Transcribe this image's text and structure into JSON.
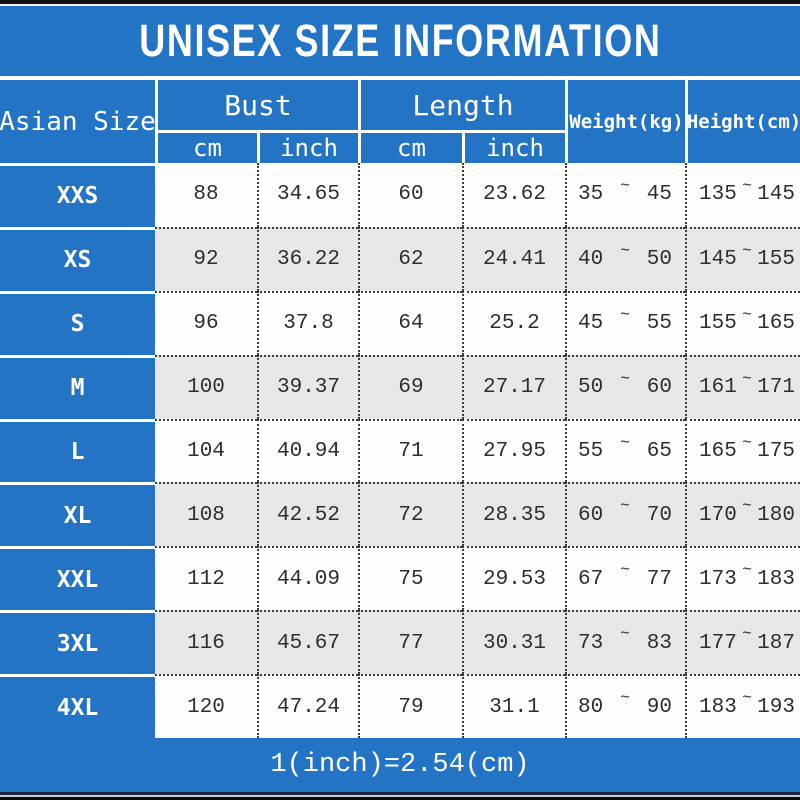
{
  "title": "UNISEX SIZE INFORMATION",
  "footer_note": "1(inch)=2.54(cm)",
  "tilde": "~",
  "header": {
    "size_column": "Asian Size",
    "bust_group": "Bust",
    "length_group": "Length",
    "weight_column": "Weight(kg)",
    "height_column": "Height(cm)",
    "bust_cm_unit": "cm",
    "bust_inch_unit": "inch",
    "length_cm_unit": "cm",
    "length_inch_unit": "inch"
  },
  "rows": [
    {
      "size": "XXS",
      "bust_cm": "88",
      "bust_inch": "34.65",
      "length_cm": "60",
      "length_inch": "23.62",
      "weight_min": "35",
      "weight_max": "45",
      "height_min": "135",
      "height_max": "145"
    },
    {
      "size": "XS",
      "bust_cm": "92",
      "bust_inch": "36.22",
      "length_cm": "62",
      "length_inch": "24.41",
      "weight_min": "40",
      "weight_max": "50",
      "height_min": "145",
      "height_max": "155"
    },
    {
      "size": "S",
      "bust_cm": "96",
      "bust_inch": "37.8",
      "length_cm": "64",
      "length_inch": "25.2",
      "weight_min": "45",
      "weight_max": "55",
      "height_min": "155",
      "height_max": "165"
    },
    {
      "size": "M",
      "bust_cm": "100",
      "bust_inch": "39.37",
      "length_cm": "69",
      "length_inch": "27.17",
      "weight_min": "50",
      "weight_max": "60",
      "height_min": "161",
      "height_max": "171"
    },
    {
      "size": "L",
      "bust_cm": "104",
      "bust_inch": "40.94",
      "length_cm": "71",
      "length_inch": "27.95",
      "weight_min": "55",
      "weight_max": "65",
      "height_min": "165",
      "height_max": "175"
    },
    {
      "size": "XL",
      "bust_cm": "108",
      "bust_inch": "42.52",
      "length_cm": "72",
      "length_inch": "28.35",
      "weight_min": "60",
      "weight_max": "70",
      "height_min": "170",
      "height_max": "180"
    },
    {
      "size": "XXL",
      "bust_cm": "112",
      "bust_inch": "44.09",
      "length_cm": "75",
      "length_inch": "29.53",
      "weight_min": "67",
      "weight_max": "77",
      "height_min": "173",
      "height_max": "183"
    },
    {
      "size": "3XL",
      "bust_cm": "116",
      "bust_inch": "45.67",
      "length_cm": "77",
      "length_inch": "30.31",
      "weight_min": "73",
      "weight_max": "83",
      "height_min": "177",
      "height_max": "187"
    },
    {
      "size": "4XL",
      "bust_cm": "120",
      "bust_inch": "47.24",
      "length_cm": "79",
      "length_inch": "31.1",
      "weight_min": "80",
      "weight_max": "90",
      "height_min": "183",
      "height_max": "193"
    }
  ],
  "colors": {
    "primary_blue": "#2474c6",
    "alt_row_gray": "#e8e6e7",
    "text_dark": "#2e2e2e",
    "header_text": "#ffffff"
  },
  "chart_data": {
    "type": "table",
    "title": "UNISEX SIZE INFORMATION",
    "columns": [
      "Asian Size",
      "Bust cm",
      "Bust inch",
      "Length cm",
      "Length inch",
      "Weight(kg)",
      "Height(cm)"
    ],
    "rows": [
      [
        "XXS",
        88,
        34.65,
        60,
        23.62,
        "35~45",
        "135~145"
      ],
      [
        "XS",
        92,
        36.22,
        62,
        24.41,
        "40~50",
        "145~155"
      ],
      [
        "S",
        96,
        37.8,
        64,
        25.2,
        "45~55",
        "155~165"
      ],
      [
        "M",
        100,
        39.37,
        69,
        27.17,
        "50~60",
        "161~171"
      ],
      [
        "L",
        104,
        40.94,
        71,
        27.95,
        "55~65",
        "165~175"
      ],
      [
        "XL",
        108,
        42.52,
        72,
        28.35,
        "60~70",
        "170~180"
      ],
      [
        "XXL",
        112,
        44.09,
        75,
        29.53,
        "67~77",
        "173~183"
      ],
      [
        "3XL",
        116,
        45.67,
        77,
        30.31,
        "73~83",
        "177~187"
      ],
      [
        "4XL",
        120,
        47.24,
        79,
        31.1,
        "80~90",
        "183~193"
      ]
    ],
    "note": "1(inch)=2.54(cm)"
  }
}
